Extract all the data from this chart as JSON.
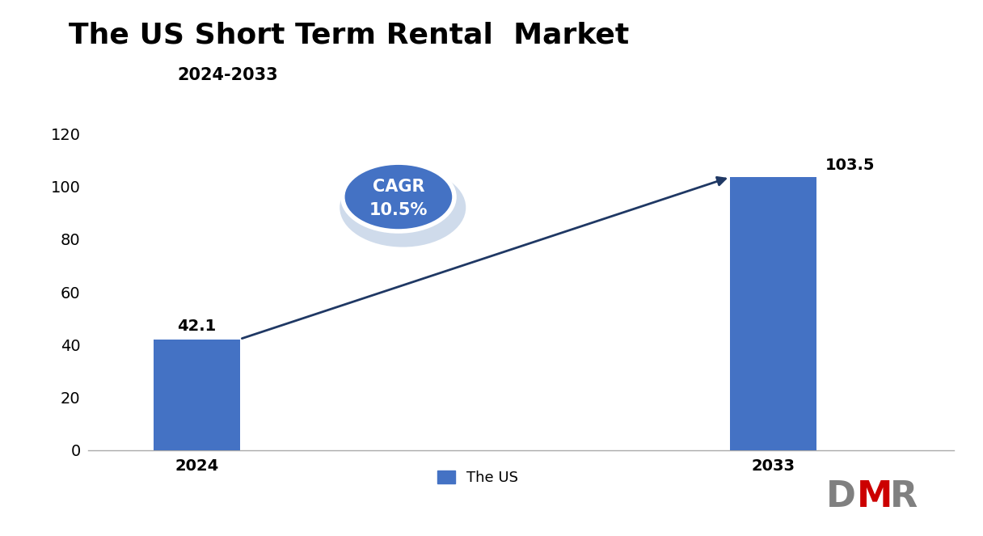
{
  "title": "The US Short Term Rental  Market",
  "subtitle": "2024-2033",
  "categories": [
    "2024",
    "2033"
  ],
  "values": [
    42.1,
    103.5
  ],
  "bar_color": "#4472C4",
  "bar_width": 0.12,
  "ylim": [
    0,
    130
  ],
  "yticks": [
    0,
    20,
    40,
    60,
    80,
    100,
    120
  ],
  "value_labels": [
    "42.1",
    "103.5"
  ],
  "cagr_text_line1": "CAGR",
  "cagr_text_line2": "10.5%",
  "legend_label": "The US",
  "background_color": "#ffffff",
  "title_fontsize": 26,
  "subtitle_fontsize": 15,
  "tick_fontsize": 14,
  "value_fontsize": 14,
  "cagr_fontsize": 15,
  "legend_fontsize": 13,
  "arrow_color": "#1F3864",
  "ellipse_fill": "#4472C4",
  "ellipse_edge_outer": "#ffffff",
  "x_positions": [
    0.1,
    0.9
  ],
  "xlim": [
    -0.05,
    1.15
  ]
}
